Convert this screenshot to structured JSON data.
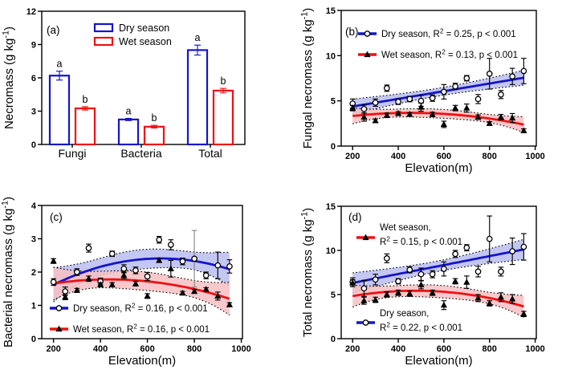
{
  "figure": {
    "background": "#ffffff",
    "colors": {
      "dry": "#1414CC",
      "wet": "#EE1111",
      "dry_band": "#b9bdee",
      "wet_band": "#f7c0c3",
      "axis": "#000000",
      "gray_err": "#888888"
    }
  },
  "chart_data": [
    {
      "panel": "a",
      "type": "bar",
      "tag": "(a)",
      "ylabel": "Necromass (g kg^{-1})",
      "ylim": [
        0,
        12
      ],
      "yticks": [
        0,
        3,
        6,
        9,
        12
      ],
      "categories": [
        "Fungi",
        "Bacteria",
        "Total"
      ],
      "legend_position": "top-inside",
      "series": [
        {
          "name": "Dry season",
          "color": "#1414CC",
          "values": [
            6.2,
            2.25,
            8.5
          ],
          "errors": [
            0.4,
            0.1,
            0.45
          ],
          "sig_letters": [
            "a",
            "a",
            "a"
          ]
        },
        {
          "name": "Wet season",
          "color": "#EE1111",
          "values": [
            3.25,
            1.6,
            4.85
          ],
          "errors": [
            0.15,
            0.12,
            0.2
          ],
          "sig_letters": [
            "b",
            "b",
            "b"
          ]
        }
      ]
    },
    {
      "panel": "b",
      "type": "scatter",
      "tag": "(b)",
      "xlabel": "Elevation(m)",
      "ylabel": "Fungal necromass (g kg^{-1})",
      "xlim": [
        150,
        1005
      ],
      "xticks": [
        200,
        400,
        600,
        800,
        1000
      ],
      "ylim": [
        0,
        15
      ],
      "yticks": [
        0,
        5,
        10,
        15
      ],
      "x": [
        200,
        250,
        300,
        350,
        400,
        450,
        500,
        550,
        600,
        650,
        700,
        750,
        800,
        850,
        900,
        950
      ],
      "series": [
        {
          "name": "Dry season",
          "marker": "circle",
          "color": "#1414CC",
          "band_color": "#b9bdee",
          "fit": "linear",
          "legend": "Dry season, R^{2} = 0.25, p < 0.001",
          "y": [
            4.7,
            4.1,
            4.8,
            6.4,
            4.9,
            5.2,
            5.0,
            5.3,
            6.0,
            6.6,
            7.5,
            5.2,
            8.0,
            5.7,
            7.7,
            8.3
          ],
          "err": [
            0.5,
            0.45,
            0.4,
            0.35,
            0.3,
            0.3,
            0.6,
            0.35,
            0.8,
            0.35,
            0.3,
            0.5,
            1.7,
            0.45,
            0.9,
            1.4
          ]
        },
        {
          "name": "Wet season",
          "marker": "triangle",
          "color": "#EE1111",
          "band_color": "#f7c0c3",
          "fit": "quadratic",
          "legend": "Wet season, R^{2} = 0.13, p < 0.001",
          "y": [
            4.2,
            3.2,
            2.8,
            3.4,
            3.6,
            3.5,
            4.3,
            3.5,
            2.4,
            4.2,
            4.2,
            3.2,
            2.5,
            3.2,
            3.1,
            1.7
          ],
          "err": [
            0.3,
            0.45,
            0.2,
            0.25,
            0.2,
            0.2,
            0.45,
            0.25,
            0.35,
            0.3,
            0.45,
            0.25,
            0.2,
            0.3,
            0.5,
            0.2
          ]
        }
      ]
    },
    {
      "panel": "c",
      "type": "scatter",
      "tag": "(c)",
      "xlabel": "Elevation(m)",
      "ylabel": "Bacterial necromass (g kg^{-1})",
      "xlim": [
        150,
        1005
      ],
      "xticks": [
        200,
        400,
        600,
        800,
        1000
      ],
      "ylim": [
        0,
        4
      ],
      "yticks": [
        0,
        1,
        2,
        3,
        4
      ],
      "x": [
        200,
        250,
        300,
        350,
        400,
        450,
        500,
        550,
        600,
        650,
        700,
        750,
        800,
        850,
        900,
        950
      ],
      "series": [
        {
          "name": "Dry season",
          "marker": "circle",
          "color": "#1414CC",
          "band_color": "#b9bdee",
          "fit": "quadratic",
          "legend": "Dry season, R^{2} = 0.16, p < 0.001",
          "gray_err_at": [
            800
          ],
          "y": [
            1.7,
            1.42,
            2.0,
            2.72,
            1.72,
            2.55,
            2.1,
            2.05,
            1.87,
            2.97,
            2.82,
            2.32,
            2.4,
            1.9,
            2.2,
            2.17
          ],
          "err": [
            0.1,
            0.13,
            0.1,
            0.12,
            0.1,
            0.08,
            0.12,
            0.1,
            0.12,
            0.1,
            0.15,
            0.1,
            0.85,
            0.1,
            0.4,
            0.2
          ]
        },
        {
          "name": "Wet season",
          "marker": "triangle",
          "color": "#EE1111",
          "band_color": "#f7c0c3",
          "fit": "quadratic",
          "legend": "Wet season, R^{2} = 0.16, p < 0.001",
          "y": [
            2.33,
            1.25,
            1.45,
            1.8,
            1.62,
            1.62,
            1.9,
            1.65,
            1.28,
            2.35,
            2.1,
            1.37,
            1.42,
            1.48,
            1.28,
            1.02
          ],
          "err": [
            0.07,
            0.08,
            0.06,
            0.08,
            0.06,
            0.06,
            0.1,
            0.07,
            0.07,
            0.05,
            0.25,
            0.05,
            0.06,
            0.05,
            0.12,
            0.06
          ]
        }
      ]
    },
    {
      "panel": "d",
      "type": "scatter",
      "tag": "(d)",
      "xlabel": "Elevation(m)",
      "ylabel": "Total necromass (g kg^{-1})",
      "xlim": [
        150,
        1005
      ],
      "xticks": [
        200,
        400,
        600,
        800,
        1000
      ],
      "ylim": [
        0,
        15
      ],
      "yticks": [
        0,
        5,
        10,
        15
      ],
      "x": [
        200,
        250,
        300,
        350,
        400,
        450,
        500,
        550,
        600,
        650,
        700,
        750,
        800,
        850,
        900,
        950
      ],
      "series": [
        {
          "name": "Dry season",
          "marker": "circle",
          "color": "#1414CC",
          "band_color": "#b9bdee",
          "fit": "linear",
          "legend_lines": [
            "Dry season,",
            "R^{2} = 0.22, p < 0.001"
          ],
          "y": [
            6.4,
            5.7,
            6.7,
            9.1,
            6.5,
            7.8,
            7.3,
            7.3,
            7.9,
            9.6,
            10.3,
            7.6,
            11.3,
            7.6,
            9.9,
            10.4
          ],
          "err": [
            0.5,
            0.9,
            0.6,
            0.5,
            0.3,
            0.35,
            0.7,
            0.4,
            0.8,
            0.4,
            0.35,
            0.6,
            2.6,
            0.5,
            1.5,
            1.5
          ]
        },
        {
          "name": "Wet season",
          "marker": "triangle",
          "color": "#EE1111",
          "band_color": "#f7c0c3",
          "fit": "quadratic",
          "legend_lines": [
            "Wet season,",
            "R^{2} = 0.15, p < 0.001"
          ],
          "y": [
            6.3,
            4.3,
            4.4,
            5.0,
            5.2,
            5.1,
            6.1,
            5.2,
            3.8,
            6.5,
            6.4,
            4.6,
            4.0,
            4.7,
            4.5,
            2.8
          ],
          "err": [
            0.4,
            0.4,
            0.3,
            0.3,
            0.3,
            0.3,
            0.45,
            0.3,
            0.5,
            0.3,
            0.7,
            0.4,
            0.3,
            0.5,
            0.5,
            0.3
          ]
        }
      ]
    }
  ]
}
